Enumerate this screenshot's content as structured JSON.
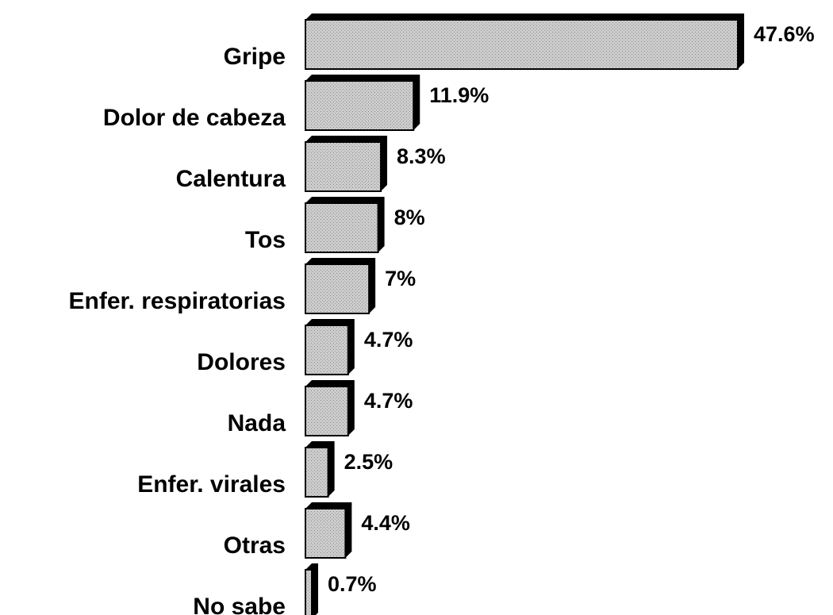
{
  "chart_data": {
    "type": "bar",
    "categories": [
      "Gripe",
      "Dolor de cabeza",
      "Calentura",
      "Tos",
      "Enfer. respiratorias",
      "Dolores",
      "Nada",
      "Enfer. virales",
      "Otras",
      "No sabe"
    ],
    "values": [
      47.6,
      11.9,
      8.3,
      8,
      7,
      4.7,
      4.7,
      2.5,
      4.4,
      0.7
    ],
    "value_labels": [
      "47.6%",
      "11.9%",
      "8.3%",
      "8%",
      "7%",
      "4.7%",
      "4.7%",
      "2.5%",
      "4.4%",
      "0.7%"
    ],
    "color": "#cccccc"
  }
}
